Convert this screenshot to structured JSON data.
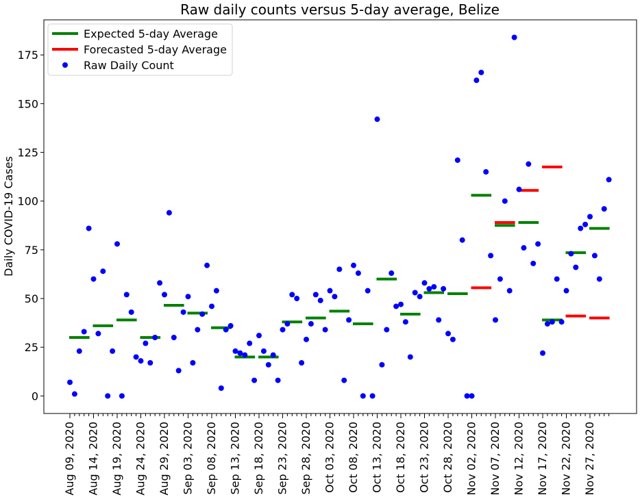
{
  "chart_data": {
    "type": "scatter",
    "title": "Raw daily counts versus 5-day average, Belize",
    "xlabel": "",
    "ylabel": "Daily COVID-19 Cases",
    "ylim": [
      -9,
      193
    ],
    "yticks": [
      0,
      25,
      50,
      75,
      100,
      125,
      150,
      175
    ],
    "grid": false,
    "legend_position": "top-left",
    "colors": {
      "expected": "#008000",
      "forecast": "#ff0000",
      "raw": "#0000ff"
    },
    "x_start": "Aug 09, 2020",
    "xtick_labels": [
      "Aug 09, 2020",
      "Aug 14, 2020",
      "Aug 19, 2020",
      "Aug 24, 2020",
      "Aug 29, 2020",
      "Sep 03, 2020",
      "Sep 08, 2020",
      "Sep 13, 2020",
      "Sep 18, 2020",
      "Sep 23, 2020",
      "Sep 28, 2020",
      "Oct 03, 2020",
      "Oct 08, 2020",
      "Oct 13, 2020",
      "Oct 18, 2020",
      "Oct 23, 2020",
      "Oct 28, 2020",
      "Nov 02, 2020",
      "Nov 07, 2020",
      "Nov 12, 2020",
      "Nov 17, 2020",
      "Nov 22, 2020",
      "Nov 27, 2020"
    ],
    "series": [
      {
        "name": "Expected 5-day Average",
        "kind": "segments",
        "segments": [
          {
            "x_start": "Aug 09, 2020",
            "x_end": "Aug 13, 2020",
            "y": 30
          },
          {
            "x_start": "Aug 14, 2020",
            "x_end": "Aug 18, 2020",
            "y": 36
          },
          {
            "x_start": "Aug 19, 2020",
            "x_end": "Aug 23, 2020",
            "y": 39
          },
          {
            "x_start": "Aug 24, 2020",
            "x_end": "Aug 28, 2020",
            "y": 30
          },
          {
            "x_start": "Aug 29, 2020",
            "x_end": "Sep 02, 2020",
            "y": 46.5
          },
          {
            "x_start": "Sep 03, 2020",
            "x_end": "Sep 07, 2020",
            "y": 42.5
          },
          {
            "x_start": "Sep 08, 2020",
            "x_end": "Sep 12, 2020",
            "y": 35
          },
          {
            "x_start": "Sep 13, 2020",
            "x_end": "Sep 17, 2020",
            "y": 20
          },
          {
            "x_start": "Sep 18, 2020",
            "x_end": "Sep 22, 2020",
            "y": 20
          },
          {
            "x_start": "Sep 23, 2020",
            "x_end": "Sep 27, 2020",
            "y": 38
          },
          {
            "x_start": "Sep 28, 2020",
            "x_end": "Oct 02, 2020",
            "y": 40
          },
          {
            "x_start": "Oct 03, 2020",
            "x_end": "Oct 07, 2020",
            "y": 43.5
          },
          {
            "x_start": "Oct 08, 2020",
            "x_end": "Oct 12, 2020",
            "y": 37
          },
          {
            "x_start": "Oct 13, 2020",
            "x_end": "Oct 17, 2020",
            "y": 60
          },
          {
            "x_start": "Oct 18, 2020",
            "x_end": "Oct 22, 2020",
            "y": 42
          },
          {
            "x_start": "Oct 23, 2020",
            "x_end": "Oct 27, 2020",
            "y": 53
          },
          {
            "x_start": "Oct 28, 2020",
            "x_end": "Nov 01, 2020",
            "y": 52.5
          },
          {
            "x_start": "Nov 02, 2020",
            "x_end": "Nov 06, 2020",
            "y": 103
          },
          {
            "x_start": "Nov 07, 2020",
            "x_end": "Nov 11, 2020",
            "y": 87.5
          },
          {
            "x_start": "Nov 12, 2020",
            "x_end": "Nov 16, 2020",
            "y": 89
          },
          {
            "x_start": "Nov 17, 2020",
            "x_end": "Nov 21, 2020",
            "y": 39
          },
          {
            "x_start": "Nov 22, 2020",
            "x_end": "Nov 26, 2020",
            "y": 73.5
          },
          {
            "x_start": "Nov 27, 2020",
            "x_end": "Dec 01, 2020",
            "y": 86
          }
        ]
      },
      {
        "name": "Forecasted 5-day Average",
        "kind": "segments",
        "segments": [
          {
            "x_start": "Nov 02, 2020",
            "x_end": "Nov 06, 2020",
            "y": 55.5
          },
          {
            "x_start": "Nov 07, 2020",
            "x_end": "Nov 11, 2020",
            "y": 89
          },
          {
            "x_start": "Nov 12, 2020",
            "x_end": "Nov 16, 2020",
            "y": 105.5
          },
          {
            "x_start": "Nov 17, 2020",
            "x_end": "Nov 21, 2020",
            "y": 117.5
          },
          {
            "x_start": "Nov 22, 2020",
            "x_end": "Nov 26, 2020",
            "y": 41
          },
          {
            "x_start": "Nov 27, 2020",
            "x_end": "Dec 01, 2020",
            "y": 40
          }
        ]
      },
      {
        "name": "Raw Daily Count",
        "kind": "points",
        "values": [
          7,
          1,
          23,
          33,
          86,
          60,
          32,
          64,
          0,
          23,
          78,
          0,
          52,
          43,
          20,
          18,
          27,
          17,
          30,
          58,
          52,
          94,
          30,
          13,
          43,
          51,
          17,
          34,
          42,
          67,
          46,
          54,
          4,
          34,
          36,
          23,
          22,
          21,
          27,
          8,
          31,
          23,
          16,
          21,
          8,
          34,
          37,
          52,
          50,
          17,
          29,
          37,
          52,
          49,
          34,
          54,
          51,
          65,
          8,
          39,
          67,
          63,
          0,
          54,
          0,
          142,
          16,
          34,
          63,
          46,
          47,
          38,
          20,
          53,
          51,
          58,
          55,
          56,
          39,
          55,
          32,
          29,
          121,
          80,
          0,
          0,
          162,
          166,
          115,
          72,
          39,
          60,
          100,
          54,
          184,
          106,
          76,
          119,
          68,
          78,
          22,
          37,
          38,
          60,
          38,
          54,
          73,
          66,
          86,
          88,
          92,
          72,
          60,
          96,
          111
        ]
      }
    ]
  }
}
